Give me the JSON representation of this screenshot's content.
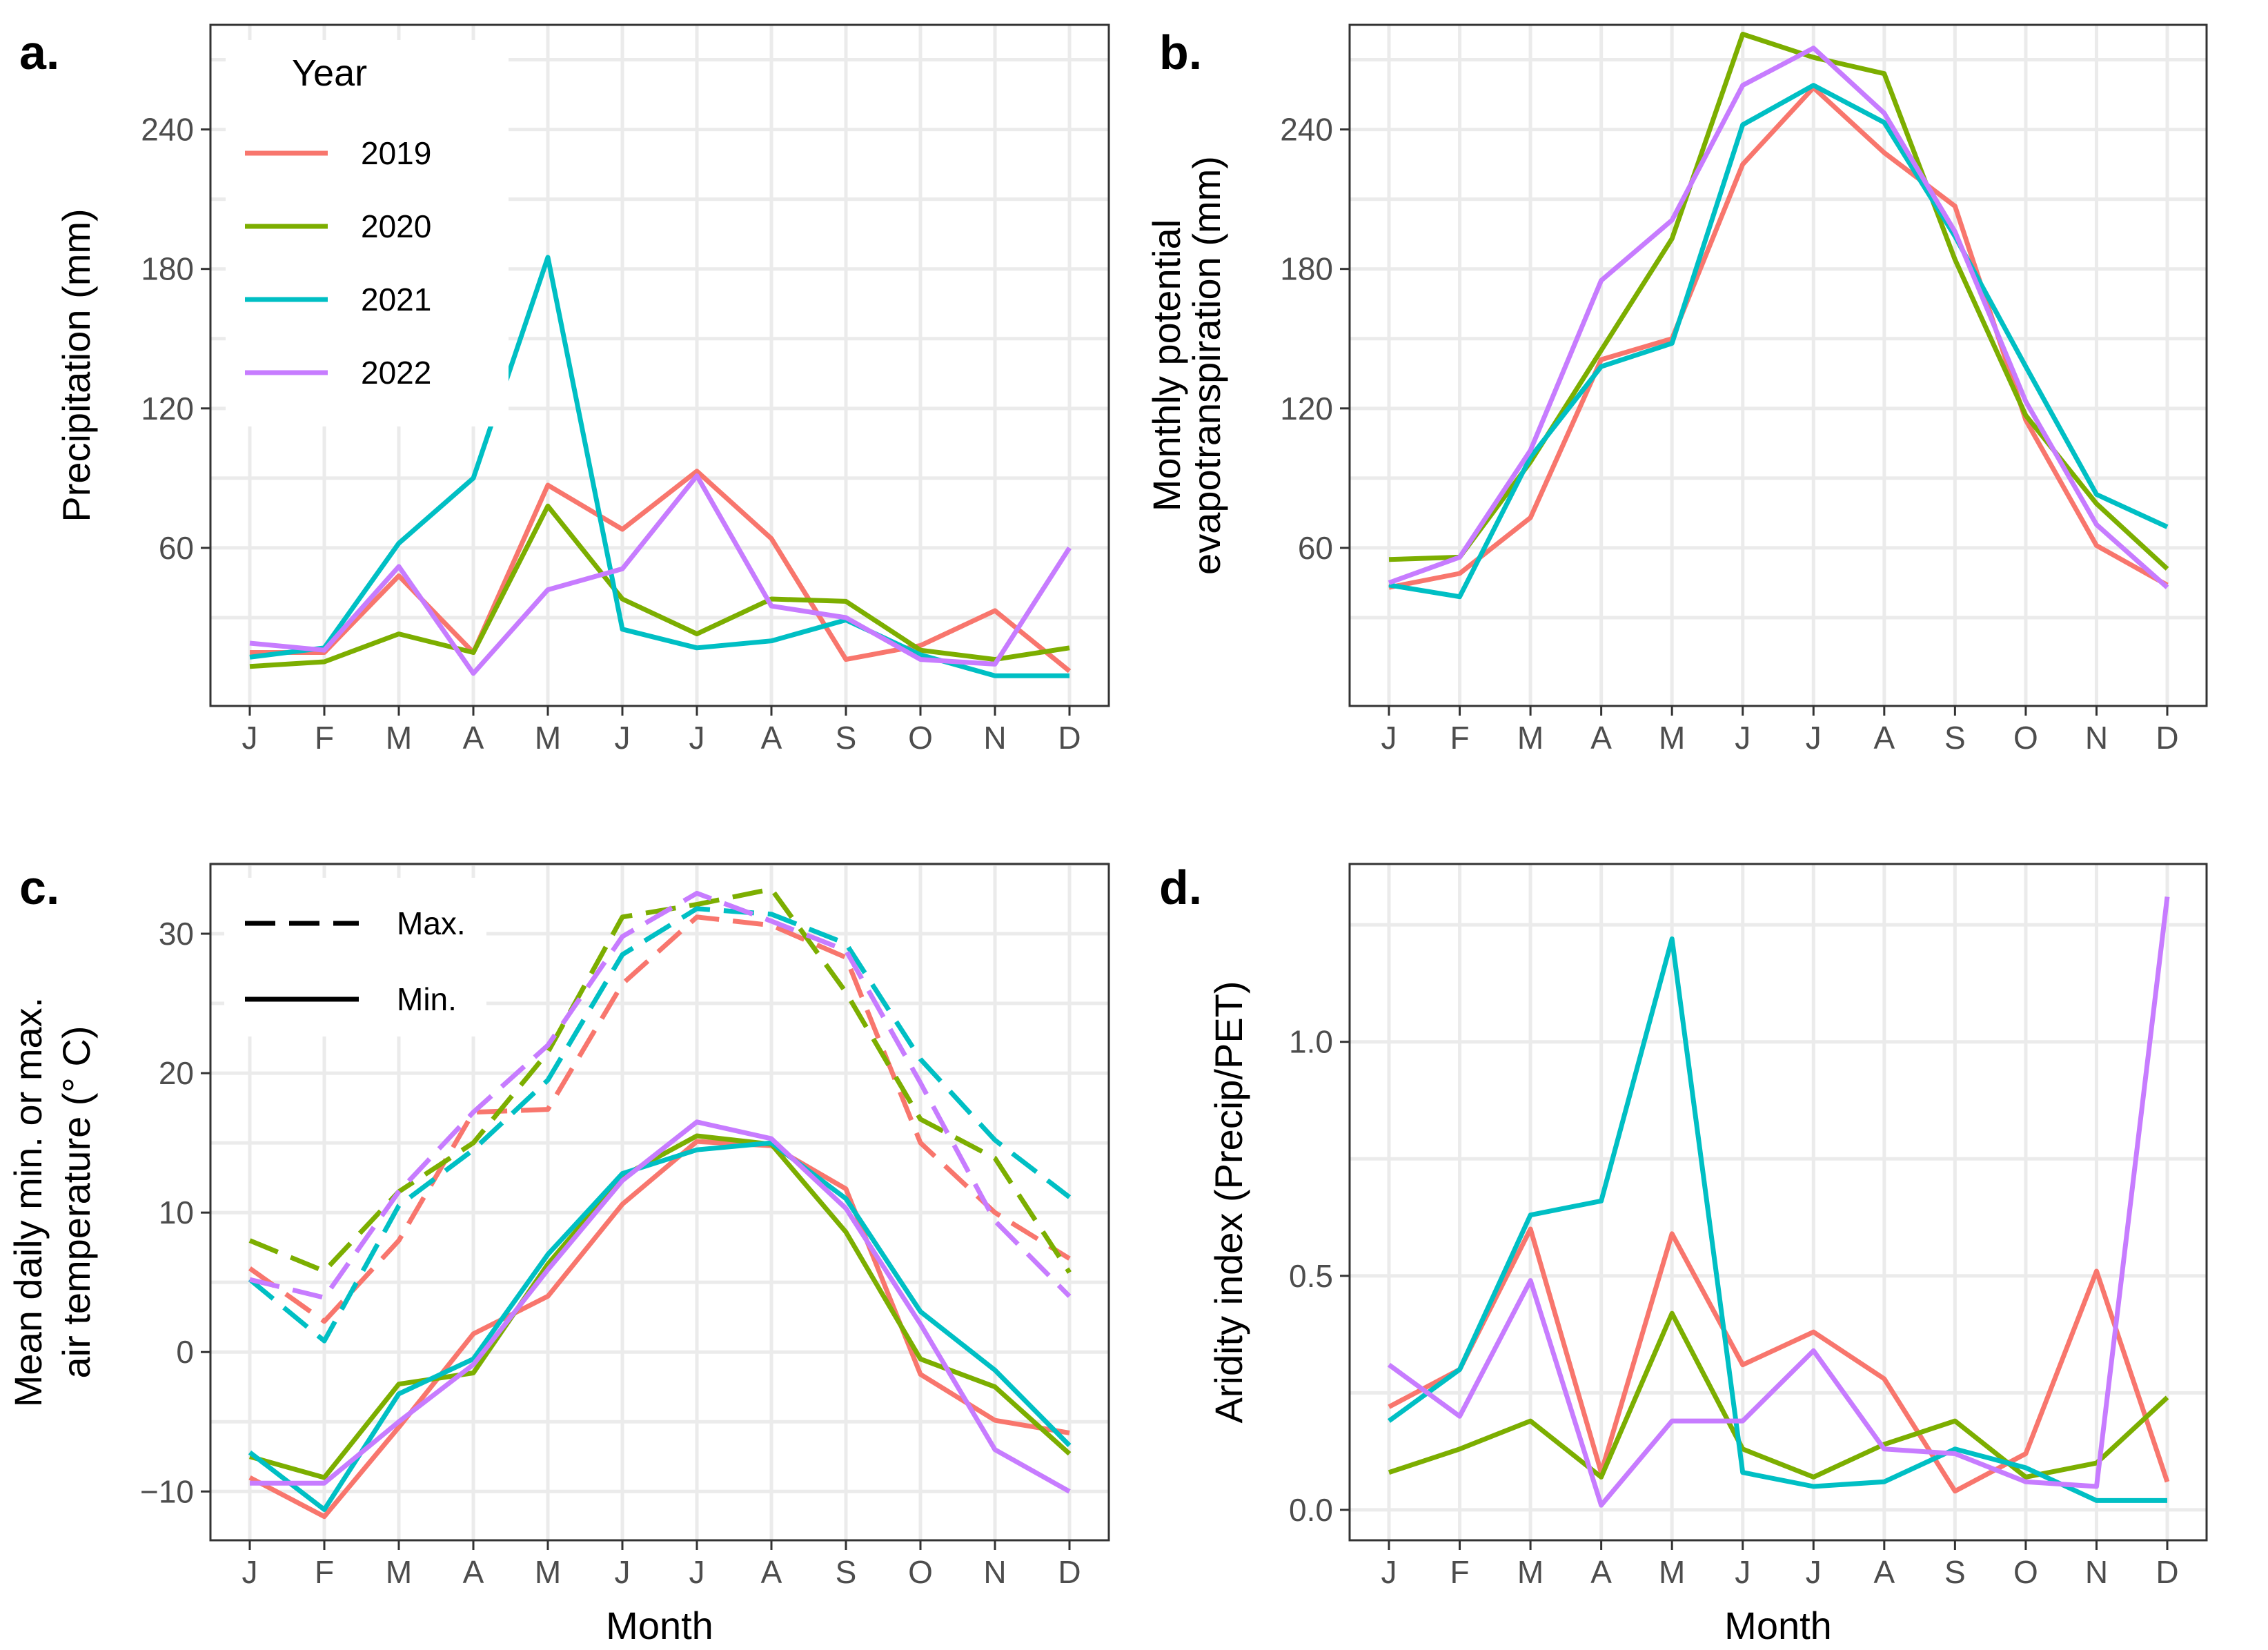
{
  "chart_data": [
    {
      "panel": "a.",
      "type": "line",
      "categories": [
        "J",
        "F",
        "M",
        "A",
        "M",
        "J",
        "J",
        "A",
        "S",
        "O",
        "N",
        "D"
      ],
      "xlabel": "",
      "ylabel": "Precipitation (mm)",
      "ylim": [
        -8,
        285
      ],
      "yticks": [
        60,
        120,
        180,
        240
      ],
      "legend": {
        "title": "Year",
        "placement": "top-left",
        "entries": [
          {
            "label": "2019",
            "color": "#F8766D"
          },
          {
            "label": "2020",
            "color": "#7CAE00"
          },
          {
            "label": "2021",
            "color": "#00BFC4"
          },
          {
            "label": "2022",
            "color": "#C77CFF"
          }
        ]
      },
      "series": [
        {
          "name": "2019",
          "color": "#F8766D",
          "values": [
            15,
            15,
            48,
            15,
            87,
            68,
            93,
            64,
            12,
            18,
            33,
            7
          ]
        },
        {
          "name": "2020",
          "color": "#7CAE00",
          "values": [
            9,
            11,
            23,
            15,
            78,
            38,
            23,
            38,
            37,
            16,
            12,
            17
          ]
        },
        {
          "name": "2021",
          "color": "#00BFC4",
          "values": [
            13,
            17,
            62,
            90,
            185,
            25,
            17,
            20,
            29,
            14,
            5,
            5
          ]
        },
        {
          "name": "2022",
          "color": "#C77CFF",
          "values": [
            19,
            16,
            52,
            6,
            42,
            51,
            91,
            35,
            30,
            12,
            10,
            60
          ]
        }
      ]
    },
    {
      "panel": "b.",
      "type": "line",
      "categories": [
        "J",
        "F",
        "M",
        "A",
        "M",
        "J",
        "J",
        "A",
        "S",
        "O",
        "N",
        "D"
      ],
      "xlabel": "",
      "ylabel_lines": [
        "Monthly potential",
        "evapotranspiration (mm)"
      ],
      "ylim": [
        -8,
        285
      ],
      "yticks": [
        60,
        120,
        180,
        240
      ],
      "series": [
        {
          "name": "2019",
          "color": "#F8766D",
          "values": [
            43,
            49,
            73,
            141,
            150,
            225,
            258,
            230,
            207,
            115,
            61,
            44
          ]
        },
        {
          "name": "2020",
          "color": "#7CAE00",
          "values": [
            55,
            56,
            97,
            145,
            193,
            281,
            271,
            264,
            184,
            117,
            79,
            51
          ]
        },
        {
          "name": "2021",
          "color": "#00BFC4",
          "values": [
            44,
            39,
            99,
            138,
            148,
            242,
            259,
            243,
            194,
            138,
            83,
            69
          ]
        },
        {
          "name": "2022",
          "color": "#C77CFF",
          "values": [
            45,
            56,
            102,
            175,
            201,
            259,
            275,
            247,
            196,
            123,
            70,
            43
          ]
        }
      ]
    },
    {
      "panel": "c.",
      "type": "line",
      "categories": [
        "J",
        "F",
        "M",
        "A",
        "M",
        "J",
        "J",
        "A",
        "S",
        "O",
        "N",
        "D"
      ],
      "xlabel": "Month",
      "ylabel_lines": [
        "Mean daily min. or max.",
        "air temperature (° C)"
      ],
      "ylim": [
        -13.5,
        35
      ],
      "yticks": [
        -10,
        0,
        10,
        20,
        30
      ],
      "ytick_labels": [
        "−10",
        "0",
        "10",
        "20",
        "30"
      ],
      "legend": {
        "placement": "top-left",
        "entries": [
          {
            "label": "Max.",
            "linetype": "dashed"
          },
          {
            "label": "Min.",
            "linetype": "solid"
          }
        ]
      },
      "series": [
        {
          "name": "2019 Max.",
          "color": "#F8766D",
          "linetype": "dashed",
          "values": [
            6,
            2.2,
            8,
            17.2,
            17.4,
            26.4,
            31.2,
            30.6,
            28.3,
            15,
            10,
            6.7
          ]
        },
        {
          "name": "2020 Max.",
          "color": "#7CAE00",
          "linetype": "dashed",
          "values": [
            8,
            5.8,
            11.5,
            15,
            21.5,
            31.2,
            32.1,
            33.2,
            25.8,
            16.7,
            13.9,
            5.7
          ]
        },
        {
          "name": "2021 Max.",
          "color": "#00BFC4",
          "linetype": "dashed",
          "values": [
            5.2,
            0.8,
            10.5,
            14.5,
            19.5,
            28.5,
            31.8,
            31.4,
            29.3,
            21,
            15.2,
            11.1
          ]
        },
        {
          "name": "2022 Max.",
          "color": "#C77CFF",
          "linetype": "dashed",
          "values": [
            5.2,
            3.9,
            11.5,
            17.2,
            22,
            29.8,
            32.9,
            30.9,
            28.8,
            19.3,
            9.4,
            4
          ]
        },
        {
          "name": "2019 Min.",
          "color": "#F8766D",
          "linetype": "solid",
          "values": [
            -9,
            -11.8,
            -5.4,
            1.3,
            4,
            10.6,
            15.1,
            14.8,
            11.7,
            -1.6,
            -4.9,
            -5.8
          ]
        },
        {
          "name": "2020 Min.",
          "color": "#7CAE00",
          "linetype": "solid",
          "values": [
            -7.5,
            -9,
            -2.3,
            -1.5,
            6.3,
            12.6,
            15.5,
            14.9,
            8.6,
            -0.5,
            -2.5,
            -7.3
          ]
        },
        {
          "name": "2021 Min.",
          "color": "#00BFC4",
          "linetype": "solid",
          "values": [
            -7.2,
            -11.3,
            -3,
            -0.5,
            7,
            12.8,
            14.5,
            15,
            11,
            2.9,
            -1.3,
            -6.7
          ]
        },
        {
          "name": "2022 Min.",
          "color": "#C77CFF",
          "linetype": "solid",
          "values": [
            -9.4,
            -9.4,
            -5,
            -0.9,
            5.9,
            12.3,
            16.5,
            15.3,
            10.3,
            2,
            -7,
            -10
          ]
        }
      ]
    },
    {
      "panel": "d.",
      "type": "line",
      "categories": [
        "J",
        "F",
        "M",
        "A",
        "M",
        "J",
        "J",
        "A",
        "S",
        "O",
        "N",
        "D"
      ],
      "xlabel": "Month",
      "ylabel": "Aridity index (Precip/PET)",
      "ylim": [
        -0.065,
        1.38
      ],
      "yticks": [
        0,
        0.5,
        1
      ],
      "ytick_labels": [
        "0.0",
        "0.5",
        "1.0"
      ],
      "series": [
        {
          "name": "2019",
          "color": "#F8766D",
          "values": [
            0.22,
            0.3,
            0.6,
            0.08,
            0.59,
            0.31,
            0.38,
            0.28,
            0.04,
            0.12,
            0.51,
            0.06
          ]
        },
        {
          "name": "2020",
          "color": "#7CAE00",
          "values": [
            0.08,
            0.13,
            0.19,
            0.07,
            0.42,
            0.13,
            0.07,
            0.14,
            0.19,
            0.07,
            0.1,
            0.24
          ]
        },
        {
          "name": "2021",
          "color": "#00BFC4",
          "values": [
            0.19,
            0.3,
            0.63,
            0.66,
            1.22,
            0.08,
            0.05,
            0.06,
            0.13,
            0.09,
            0.02,
            0.02
          ]
        },
        {
          "name": "2022",
          "color": "#C77CFF",
          "values": [
            0.31,
            0.2,
            0.49,
            0.01,
            0.19,
            0.19,
            0.34,
            0.13,
            0.12,
            0.06,
            0.05,
            1.31
          ]
        }
      ]
    }
  ]
}
